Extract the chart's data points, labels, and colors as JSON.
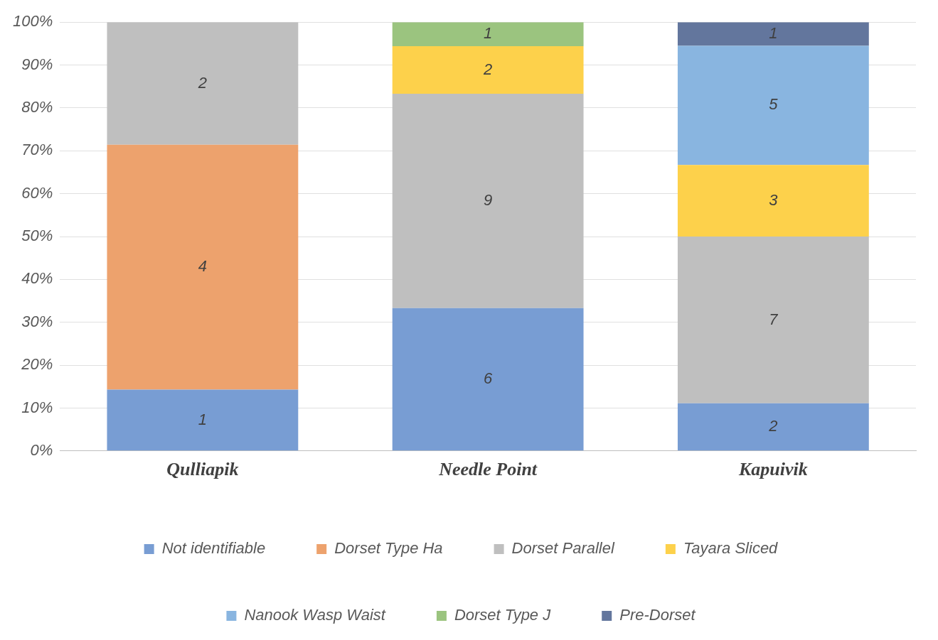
{
  "chart_data": {
    "type": "bar",
    "stacked": true,
    "categories": [
      "Qulliapik",
      "Needle Point",
      "Kapuivik"
    ],
    "series": [
      {
        "name": "Not identifiable",
        "color": "#789dd3",
        "values": [
          14.3,
          33.3,
          11.1
        ]
      },
      {
        "name": "Dorset Type Ha",
        "color": "#eda26d",
        "values": [
          57.1,
          null,
          null
        ]
      },
      {
        "name": "Dorset Parallel",
        "color": "#bfbfbf",
        "values": [
          28.6,
          50,
          38.9
        ]
      },
      {
        "name": "Tayara Sliced",
        "color": "#fdd14b",
        "values": [
          null,
          11.1,
          16.7
        ]
      },
      {
        "name": "Nanook Wasp Waist",
        "color": "#89b5e0",
        "values": [
          null,
          null,
          27.8
        ]
      },
      {
        "name": "Dorset Type J",
        "color": "#9bc47f",
        "values": [
          null,
          5.6,
          null
        ]
      },
      {
        "name": "Pre-Dorset",
        "color": "#63769d",
        "values": [
          null,
          null,
          5.5
        ]
      }
    ],
    "annotations": [
      "1",
      "4",
      "2",
      "6",
      "9",
      "2",
      "1",
      "2",
      "7",
      "3",
      "5",
      "1"
    ],
    "ylim": [
      0,
      100
    ],
    "yticks": [
      {
        "value": 0,
        "label": "0%"
      },
      {
        "value": 10,
        "label": "10%"
      },
      {
        "value": 20,
        "label": "20%"
      },
      {
        "value": 30,
        "label": "30%"
      },
      {
        "value": 40,
        "label": "40%"
      },
      {
        "value": 50,
        "label": "50%"
      },
      {
        "value": 60,
        "label": "60%"
      },
      {
        "value": 70,
        "label": "70%"
      },
      {
        "value": 80,
        "label": "80%"
      },
      {
        "value": 90,
        "label": "90%"
      },
      {
        "value": 100,
        "label": "100%"
      }
    ],
    "grid": "y",
    "legend": "bottom"
  }
}
